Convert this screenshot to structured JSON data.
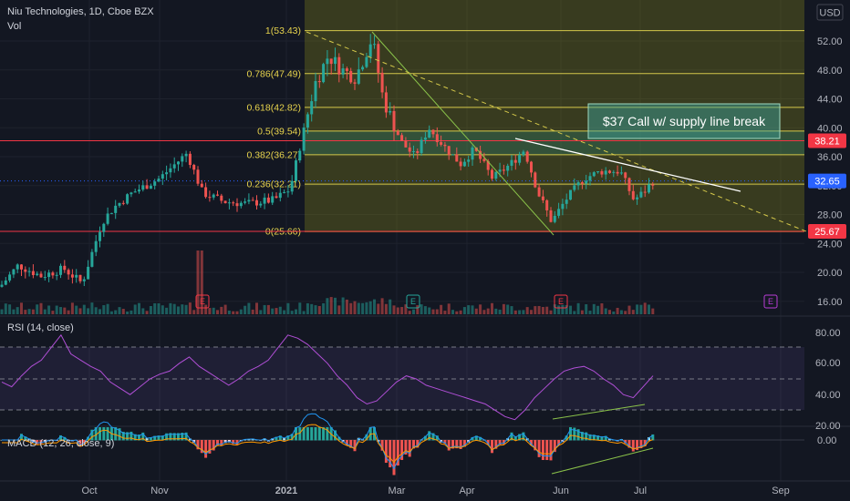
{
  "header": {
    "title": "Niu Technologies, 1D, Cboe BZX",
    "vol_label": "Vol",
    "currency": "USD"
  },
  "fib_levels": [
    {
      "label": "1(53.43)",
      "value": 53.43
    },
    {
      "label": "0.786(47.49)",
      "value": 47.49
    },
    {
      "label": "0.618(42.82)",
      "value": 42.82
    },
    {
      "label": "0.5(39.54)",
      "value": 39.54
    },
    {
      "label": "0.382(36.27)",
      "value": 36.27
    },
    {
      "label": "0.236(32.21)",
      "value": 32.21
    },
    {
      "label": "0(25.66)",
      "value": 25.66
    }
  ],
  "price_tags": [
    {
      "label": "38.21",
      "value": 38.21,
      "color": "#f23645"
    },
    {
      "label": "32.65",
      "value": 32.65,
      "color": "#2962ff"
    },
    {
      "label": "25.67",
      "value": 25.67,
      "color": "#f23645"
    }
  ],
  "annotation": "$37 Call w/ supply line break",
  "earnings_marker": "E",
  "rsi": {
    "label": "RSI (14, close)",
    "ticks": [
      "80.00",
      "60.00",
      "40.00",
      "20.00"
    ],
    "bands": [
      70,
      50,
      30
    ]
  },
  "macd": {
    "label": "MACD (12, 26, close, 9)",
    "tick": "0.00"
  },
  "chart_data": {
    "type": "candlestick",
    "symbol": "Niu Technologies",
    "interval": "1D",
    "exchange": "Cboe BZX",
    "price_axis": {
      "ticks": [
        52,
        48,
        44,
        40,
        36,
        32,
        28,
        24,
        20,
        16
      ],
      "tick_labels": [
        "52.00",
        "48.00",
        "44.00",
        "40.00",
        "36.00",
        "32.00",
        "28.00",
        "24.00",
        "20.00",
        "16.00"
      ],
      "range": [
        14.5,
        56.5
      ]
    },
    "x_ticks": [
      "Oct",
      "Nov",
      "2021",
      "Mar",
      "Apr",
      "Jun",
      "Jul",
      "Sep"
    ],
    "fibonacci_retracement": {
      "high": 53.43,
      "low": 25.66
    },
    "horizontal_lines": [
      38.21,
      25.67
    ],
    "last_price": 32.65,
    "rsi": {
      "ylim": [
        15,
        88
      ],
      "bands": [
        70,
        50,
        30
      ],
      "series": [
        48,
        45,
        52,
        58,
        62,
        70,
        78,
        66,
        62,
        58,
        55,
        48,
        44,
        40,
        45,
        50,
        53,
        55,
        60,
        64,
        58,
        54,
        50,
        46,
        50,
        55,
        58,
        62,
        70,
        78,
        76,
        72,
        66,
        60,
        52,
        46,
        38,
        34,
        36,
        42,
        48,
        52,
        50,
        46,
        44,
        42,
        40,
        38,
        36,
        34,
        30,
        26,
        24,
        30,
        38,
        44,
        50,
        55,
        57,
        58,
        55,
        50,
        46,
        40,
        38,
        45,
        52
      ]
    }
  }
}
